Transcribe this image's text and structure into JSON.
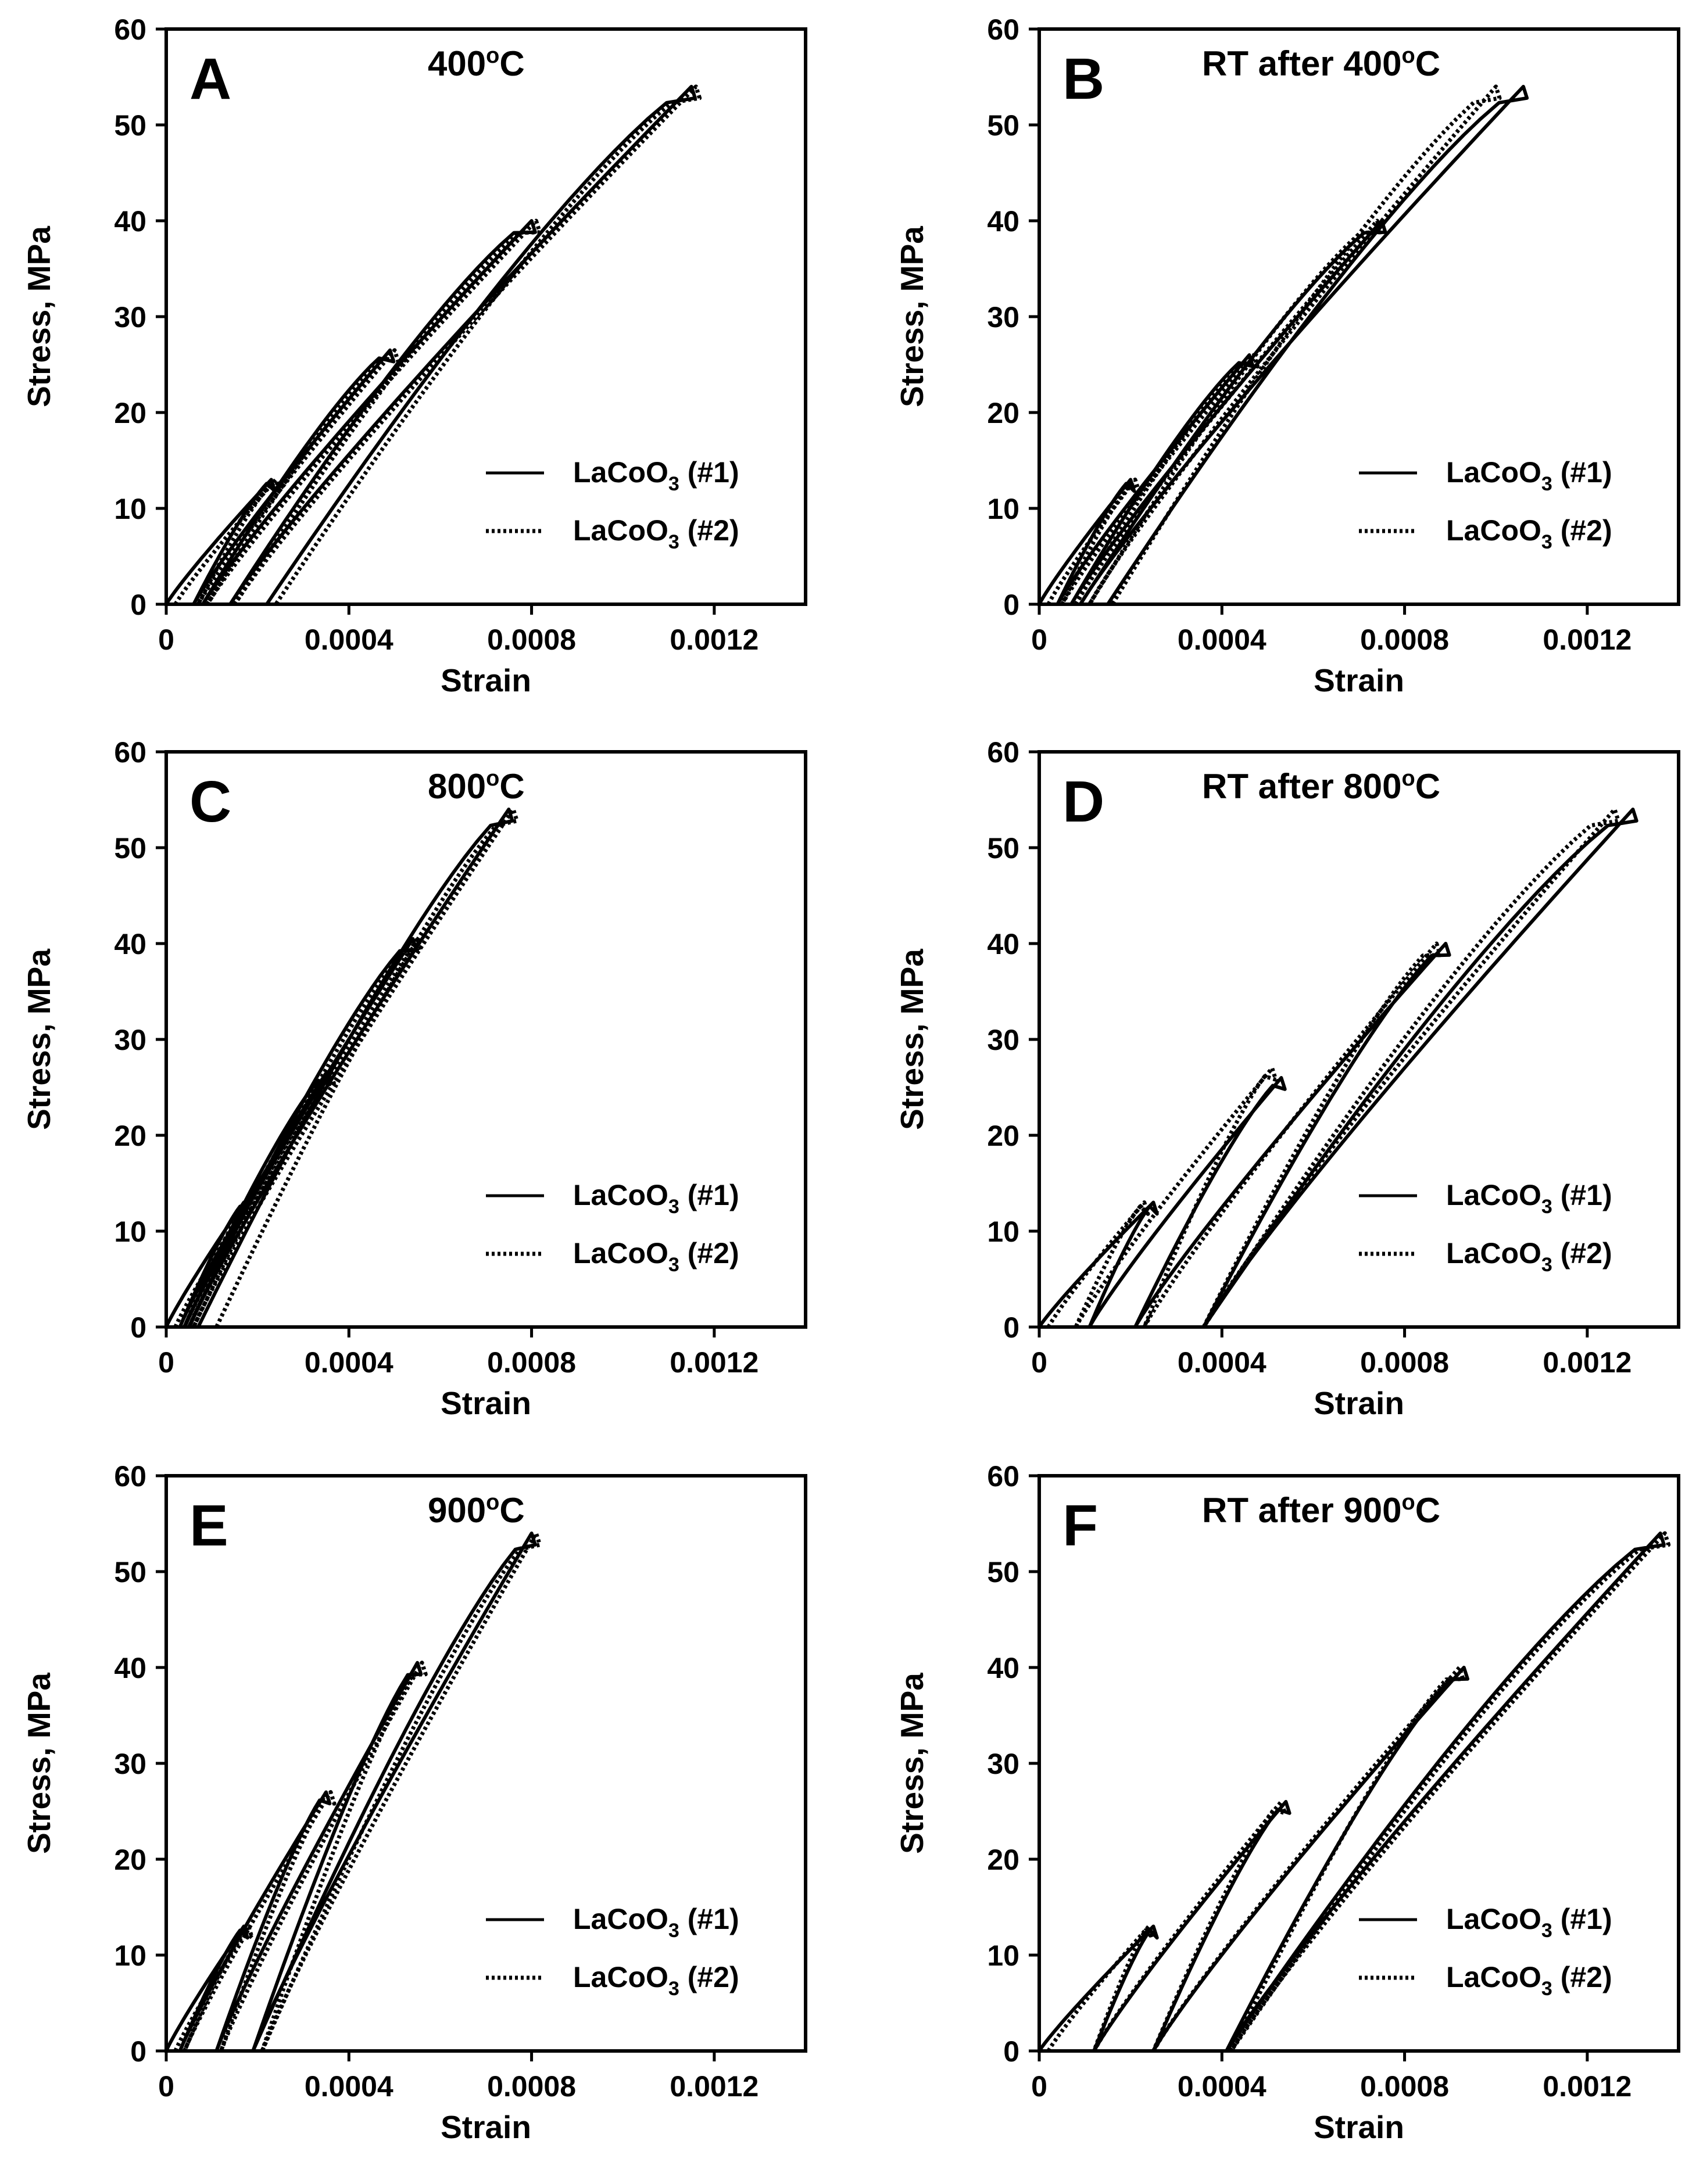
{
  "chart_data": [
    {
      "id": "A",
      "type": "line",
      "letter": "A",
      "title_main": "400",
      "title_sup": "o",
      "title_tail": "C",
      "xlabel": "Strain",
      "ylabel": "Stress, MPa",
      "xlim": [
        0,
        0.0014
      ],
      "ylim": [
        0,
        60
      ],
      "xticks": [
        0,
        0.0004,
        0.0008,
        0.0012
      ],
      "xtick_labels": [
        "0",
        "0.0004",
        "0.0008",
        "0.0012"
      ],
      "yticks": [
        0,
        10,
        20,
        30,
        40,
        50,
        60
      ],
      "ytick_labels": [
        "0",
        "10",
        "20",
        "30",
        "40",
        "50",
        "60"
      ],
      "legend": [
        {
          "name": "LaCoO",
          "sub": "3",
          "suffix": " (#1)",
          "style": "solid"
        },
        {
          "name": "LaCoO",
          "sub": "3",
          "suffix": " (#2)",
          "style": "dotted"
        }
      ],
      "series": [
        {
          "name": "LaCoO3 (#1)",
          "style": "solid",
          "cycles": [
            {
              "s": 0.0,
              "e": 0.0,
              "p": 13,
              "pe": 0.00023,
              "re": 6e-05
            },
            {
              "s": 6e-05,
              "e": 6e-05,
              "p": 26.5,
              "pe": 0.00049,
              "re": 8e-05
            },
            {
              "s": 8e-05,
              "e": 8e-05,
              "p": 40,
              "pe": 0.0008,
              "re": 0.00014
            },
            {
              "s": 0.00014,
              "e": 0.00014,
              "p": 54,
              "pe": 0.00115,
              "re": 0.00022
            }
          ]
        },
        {
          "name": "LaCoO3 (#2)",
          "style": "dotted",
          "cycles": [
            {
              "s": 0.0,
              "e": 2e-05,
              "p": 13,
              "pe": 0.00024,
              "re": 7e-05
            },
            {
              "s": 7e-05,
              "e": 7e-05,
              "p": 26.5,
              "pe": 0.0005,
              "re": 9e-05
            },
            {
              "s": 9e-05,
              "e": 9e-05,
              "p": 40,
              "pe": 0.00081,
              "re": 0.00015
            },
            {
              "s": 0.00015,
              "e": 0.00015,
              "p": 54,
              "pe": 0.00116,
              "re": 0.00024
            }
          ]
        }
      ]
    },
    {
      "id": "B",
      "type": "line",
      "letter": "B",
      "title_main": "RT after 400",
      "title_sup": "o",
      "title_tail": "C",
      "xlabel": "Strain",
      "ylabel": "Stress, MPa",
      "xlim": [
        0,
        0.0014
      ],
      "ylim": [
        0,
        60
      ],
      "xticks": [
        0,
        0.0004,
        0.0008,
        0.0012
      ],
      "xtick_labels": [
        "0",
        "0.0004",
        "0.0008",
        "0.0012"
      ],
      "yticks": [
        0,
        10,
        20,
        30,
        40,
        50,
        60
      ],
      "ytick_labels": [
        "0",
        "10",
        "20",
        "30",
        "40",
        "50",
        "60"
      ],
      "legend": [
        {
          "name": "LaCoO",
          "sub": "3",
          "suffix": " (#1)",
          "style": "solid"
        },
        {
          "name": "LaCoO",
          "sub": "3",
          "suffix": " (#2)",
          "style": "dotted"
        }
      ],
      "series": [
        {
          "name": "LaCoO3 (#1)",
          "style": "solid",
          "cycles": [
            {
              "s": 0.0,
              "e": 0.0,
              "p": 13,
              "pe": 0.0002,
              "re": 4e-05
            },
            {
              "s": 4e-05,
              "e": 4e-05,
              "p": 26,
              "pe": 0.00046,
              "re": 7e-05
            },
            {
              "s": 7e-05,
              "e": 7e-05,
              "p": 40,
              "pe": 0.00075,
              "re": 9e-05
            },
            {
              "s": 9e-05,
              "e": 9e-05,
              "p": 54,
              "pe": 0.00106,
              "re": 0.00015
            }
          ]
        },
        {
          "name": "LaCoO3 (#2)",
          "style": "dotted",
          "cycles": [
            {
              "s": 0.0,
              "e": 2e-05,
              "p": 13,
              "pe": 0.00021,
              "re": 5e-05
            },
            {
              "s": 5e-05,
              "e": 5e-05,
              "p": 26,
              "pe": 0.00047,
              "re": 8e-05
            },
            {
              "s": 8e-05,
              "e": 8e-05,
              "p": 40,
              "pe": 0.00074,
              "re": 0.00011
            },
            {
              "s": 0.00011,
              "e": 0.00011,
              "p": 54,
              "pe": 0.001,
              "re": 0.00016
            }
          ]
        }
      ]
    },
    {
      "id": "C",
      "type": "line",
      "letter": "C",
      "title_main": "800",
      "title_sup": "o",
      "title_tail": "C",
      "xlabel": "Strain",
      "ylabel": "Stress, MPa",
      "xlim": [
        0,
        0.0014
      ],
      "ylim": [
        0,
        60
      ],
      "xticks": [
        0,
        0.0004,
        0.0008,
        0.0012
      ],
      "xtick_labels": [
        "0",
        "0.0004",
        "0.0008",
        "0.0012"
      ],
      "yticks": [
        0,
        10,
        20,
        30,
        40,
        50,
        60
      ],
      "ytick_labels": [
        "0",
        "10",
        "20",
        "30",
        "40",
        "50",
        "60"
      ],
      "legend": [
        {
          "name": "LaCoO",
          "sub": "3",
          "suffix": " (#1)",
          "style": "solid"
        },
        {
          "name": "LaCoO",
          "sub": "3",
          "suffix": " (#2)",
          "style": "dotted"
        }
      ],
      "series": [
        {
          "name": "LaCoO3 (#1)",
          "style": "solid",
          "cycles": [
            {
              "s": 0.0,
              "e": 0.0,
              "p": 13,
              "pe": 0.00017,
              "re": 3e-05
            },
            {
              "s": 3e-05,
              "e": 3e-05,
              "p": 26.5,
              "pe": 0.00035,
              "re": 4e-05
            },
            {
              "s": 4e-05,
              "e": 4e-05,
              "p": 40.5,
              "pe": 0.00054,
              "re": 5e-05
            },
            {
              "s": 5e-05,
              "e": 5e-05,
              "p": 54,
              "pe": 0.00075,
              "re": 7e-05
            }
          ]
        },
        {
          "name": "LaCoO3 (#2)",
          "style": "dotted",
          "cycles": [
            {
              "s": 0.0,
              "e": 2e-05,
              "p": 13,
              "pe": 0.00018,
              "re": 4e-05
            },
            {
              "s": 4e-05,
              "e": 4e-05,
              "p": 26.5,
              "pe": 0.00036,
              "re": 5e-05
            },
            {
              "s": 5e-05,
              "e": 5e-05,
              "p": 40.5,
              "pe": 0.00055,
              "re": 6e-05
            },
            {
              "s": 6e-05,
              "e": 6e-05,
              "p": 54,
              "pe": 0.00076,
              "re": 0.00011
            }
          ]
        }
      ]
    },
    {
      "id": "D",
      "type": "line",
      "letter": "D",
      "title_main": "RT after 800",
      "title_sup": "o",
      "title_tail": "C",
      "xlabel": "Strain",
      "ylabel": "Stress, MPa",
      "xlim": [
        0,
        0.0014
      ],
      "ylim": [
        0,
        60
      ],
      "xticks": [
        0,
        0.0004,
        0.0008,
        0.0012
      ],
      "xtick_labels": [
        "0",
        "0.0004",
        "0.0008",
        "0.0012"
      ],
      "yticks": [
        0,
        10,
        20,
        30,
        40,
        50,
        60
      ],
      "ytick_labels": [
        "0",
        "10",
        "20",
        "30",
        "40",
        "50",
        "60"
      ],
      "legend": [
        {
          "name": "LaCoO",
          "sub": "3",
          "suffix": " (#1)",
          "style": "solid"
        },
        {
          "name": "LaCoO",
          "sub": "3",
          "suffix": " (#2)",
          "style": "dotted"
        }
      ],
      "series": [
        {
          "name": "LaCoO3 (#1)",
          "style": "solid",
          "cycles": [
            {
              "s": 0.0,
              "e": 0.0,
              "p": 13,
              "pe": 0.00025,
              "re": 0.00011
            },
            {
              "s": 0.00011,
              "e": 0.00011,
              "p": 26,
              "pe": 0.00053,
              "re": 0.00021
            },
            {
              "s": 0.00021,
              "e": 0.00021,
              "p": 40,
              "pe": 0.00089,
              "re": 0.00036
            },
            {
              "s": 0.00036,
              "e": 0.00036,
              "p": 54,
              "pe": 0.0013,
              "re": 0.00036
            }
          ]
        },
        {
          "name": "LaCoO3 (#2)",
          "style": "dotted",
          "cycles": [
            {
              "s": 0.0,
              "e": 2e-05,
              "p": 13,
              "pe": 0.00023,
              "re": 8e-05
            },
            {
              "s": 8e-05,
              "e": 8e-05,
              "p": 27,
              "pe": 0.00051,
              "re": 0.00023
            },
            {
              "s": 0.00023,
              "e": 0.00023,
              "p": 40,
              "pe": 0.00087,
              "re": 0.00036
            },
            {
              "s": 0.00036,
              "e": 0.00036,
              "p": 54,
              "pe": 0.00126,
              "re": 0.00036
            }
          ]
        }
      ]
    },
    {
      "id": "E",
      "type": "line",
      "letter": "E",
      "title_main": "900",
      "title_sup": "o",
      "title_tail": "C",
      "xlabel": "Strain",
      "ylabel": "Stress, MPa",
      "xlim": [
        0,
        0.0014
      ],
      "ylim": [
        0,
        60
      ],
      "xticks": [
        0,
        0.0004,
        0.0008,
        0.0012
      ],
      "xtick_labels": [
        "0",
        "0.0004",
        "0.0008",
        "0.0012"
      ],
      "yticks": [
        0,
        10,
        20,
        30,
        40,
        50,
        60
      ],
      "ytick_labels": [
        "0",
        "10",
        "20",
        "30",
        "40",
        "50",
        "60"
      ],
      "legend": [
        {
          "name": "LaCoO",
          "sub": "3",
          "suffix": " (#1)",
          "style": "solid"
        },
        {
          "name": "LaCoO",
          "sub": "3",
          "suffix": " (#2)",
          "style": "dotted"
        }
      ],
      "series": [
        {
          "name": "LaCoO3 (#1)",
          "style": "solid",
          "cycles": [
            {
              "s": 0.0,
              "e": 0.0,
              "p": 13,
              "pe": 0.00017,
              "re": 3e-05
            },
            {
              "s": 3e-05,
              "e": 3e-05,
              "p": 27,
              "pe": 0.00035,
              "re": 0.00011
            },
            {
              "s": 0.00011,
              "e": 0.00011,
              "p": 40.5,
              "pe": 0.00055,
              "re": 0.00019
            },
            {
              "s": 0.00019,
              "e": 0.00019,
              "p": 54,
              "pe": 0.0008,
              "re": 0.00019
            }
          ]
        },
        {
          "name": "LaCoO3 (#2)",
          "style": "dotted",
          "cycles": [
            {
              "s": 0.0,
              "e": 2e-05,
              "p": 13,
              "pe": 0.00018,
              "re": 4e-05
            },
            {
              "s": 4e-05,
              "e": 4e-05,
              "p": 27,
              "pe": 0.00036,
              "re": 0.00012
            },
            {
              "s": 0.00012,
              "e": 0.00012,
              "p": 40.5,
              "pe": 0.00056,
              "re": 0.00021
            },
            {
              "s": 0.00021,
              "e": 0.00021,
              "p": 54,
              "pe": 0.00081,
              "re": 0.00021
            }
          ]
        }
      ]
    },
    {
      "id": "F",
      "type": "line",
      "letter": "F",
      "title_main": "RT after 900",
      "title_sup": "o",
      "title_tail": "C",
      "xlabel": "Strain",
      "ylabel": "Stress, MPa",
      "xlim": [
        0,
        0.0014
      ],
      "ylim": [
        0,
        60
      ],
      "xticks": [
        0,
        0.0004,
        0.0008,
        0.0012
      ],
      "xtick_labels": [
        "0",
        "0.0004",
        "0.0008",
        "0.0012"
      ],
      "yticks": [
        0,
        10,
        20,
        30,
        40,
        50,
        60
      ],
      "ytick_labels": [
        "0",
        "10",
        "20",
        "30",
        "40",
        "50",
        "60"
      ],
      "legend": [
        {
          "name": "LaCoO",
          "sub": "3",
          "suffix": " (#1)",
          "style": "solid"
        },
        {
          "name": "LaCoO",
          "sub": "3",
          "suffix": " (#2)",
          "style": "dotted"
        }
      ],
      "series": [
        {
          "name": "LaCoO3 (#1)",
          "style": "solid",
          "cycles": [
            {
              "s": 0.0,
              "e": 0.0,
              "p": 13,
              "pe": 0.00025,
              "re": 0.00012
            },
            {
              "s": 0.00012,
              "e": 0.00012,
              "p": 26,
              "pe": 0.00054,
              "re": 0.00025
            },
            {
              "s": 0.00025,
              "e": 0.00025,
              "p": 40,
              "pe": 0.00093,
              "re": 0.00041
            },
            {
              "s": 0.00041,
              "e": 0.00041,
              "p": 54,
              "pe": 0.00136,
              "re": 0.00041
            }
          ]
        },
        {
          "name": "LaCoO3 (#2)",
          "style": "dotted",
          "cycles": [
            {
              "s": 0.0,
              "e": 2e-05,
              "p": 13,
              "pe": 0.00024,
              "re": 0.00012
            },
            {
              "s": 0.00012,
              "e": 0.00012,
              "p": 26,
              "pe": 0.00053,
              "re": 0.00025
            },
            {
              "s": 0.00025,
              "e": 0.00025,
              "p": 40,
              "pe": 0.00092,
              "re": 0.00042
            },
            {
              "s": 0.00042,
              "e": 0.00042,
              "p": 54,
              "pe": 0.00137,
              "re": 0.00042
            }
          ]
        }
      ]
    }
  ]
}
